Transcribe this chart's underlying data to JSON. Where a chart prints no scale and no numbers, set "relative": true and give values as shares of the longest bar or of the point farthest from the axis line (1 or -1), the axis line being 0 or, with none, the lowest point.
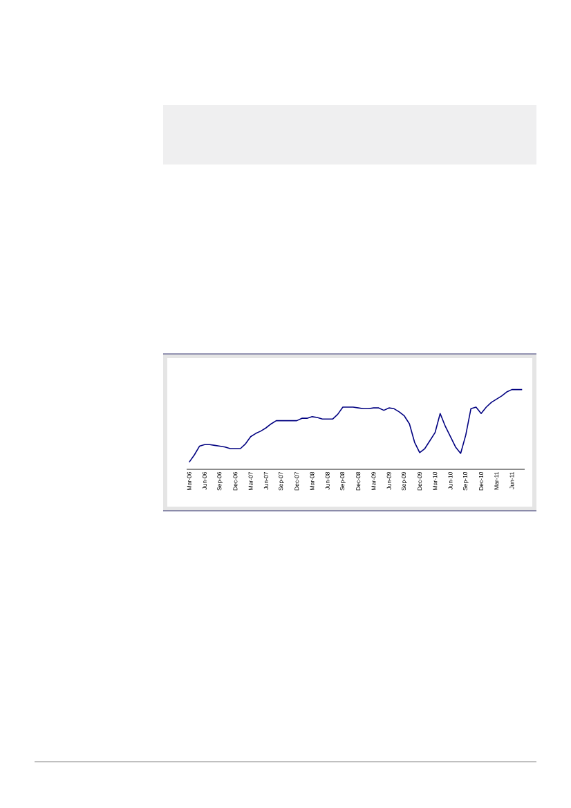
{
  "chart_data": {
    "type": "line",
    "relative": true,
    "categories": [
      "Mar-06",
      null,
      null,
      "Jun-06",
      null,
      null,
      "Sep-06",
      null,
      null,
      "Dec-06",
      null,
      null,
      "Mar-07",
      null,
      null,
      "Jun-07",
      null,
      null,
      "Sep-07",
      null,
      null,
      "Dec-07",
      null,
      null,
      "Mar-08",
      null,
      null,
      "Jun-08",
      null,
      null,
      "Sep-08",
      null,
      null,
      "Dec-08",
      null,
      null,
      "Mar-09",
      null,
      null,
      "Jun-09",
      null,
      null,
      "Sep-09",
      null,
      null,
      "Dec-09",
      null,
      null,
      "Mar-10",
      null,
      null,
      "Jun-10",
      null,
      null,
      "Sep-10",
      null,
      null,
      "Dec-10",
      null,
      null,
      "Mar-11",
      null,
      null,
      "Jun-11",
      null,
      null
    ],
    "series": [
      {
        "color": "#000080",
        "values": [
          0.09,
          0.18,
          0.29,
          0.31,
          0.31,
          0.3,
          0.29,
          0.28,
          0.26,
          0.26,
          0.26,
          0.32,
          0.41,
          0.45,
          0.48,
          0.52,
          0.57,
          0.61,
          0.61,
          0.61,
          0.61,
          0.61,
          0.64,
          0.64,
          0.66,
          0.65,
          0.63,
          0.63,
          0.63,
          0.69,
          0.78,
          0.78,
          0.78,
          0.77,
          0.76,
          0.76,
          0.77,
          0.77,
          0.74,
          0.77,
          0.76,
          0.72,
          0.67,
          0.57,
          0.34,
          0.21,
          0.26,
          0.36,
          0.46,
          0.7,
          0.54,
          0.41,
          0.28,
          0.2,
          0.43,
          0.76,
          0.78,
          0.7,
          0.78,
          0.84,
          0.88,
          0.92,
          0.97,
          1.0,
          1.0,
          1.0
        ]
      }
    ]
  }
}
